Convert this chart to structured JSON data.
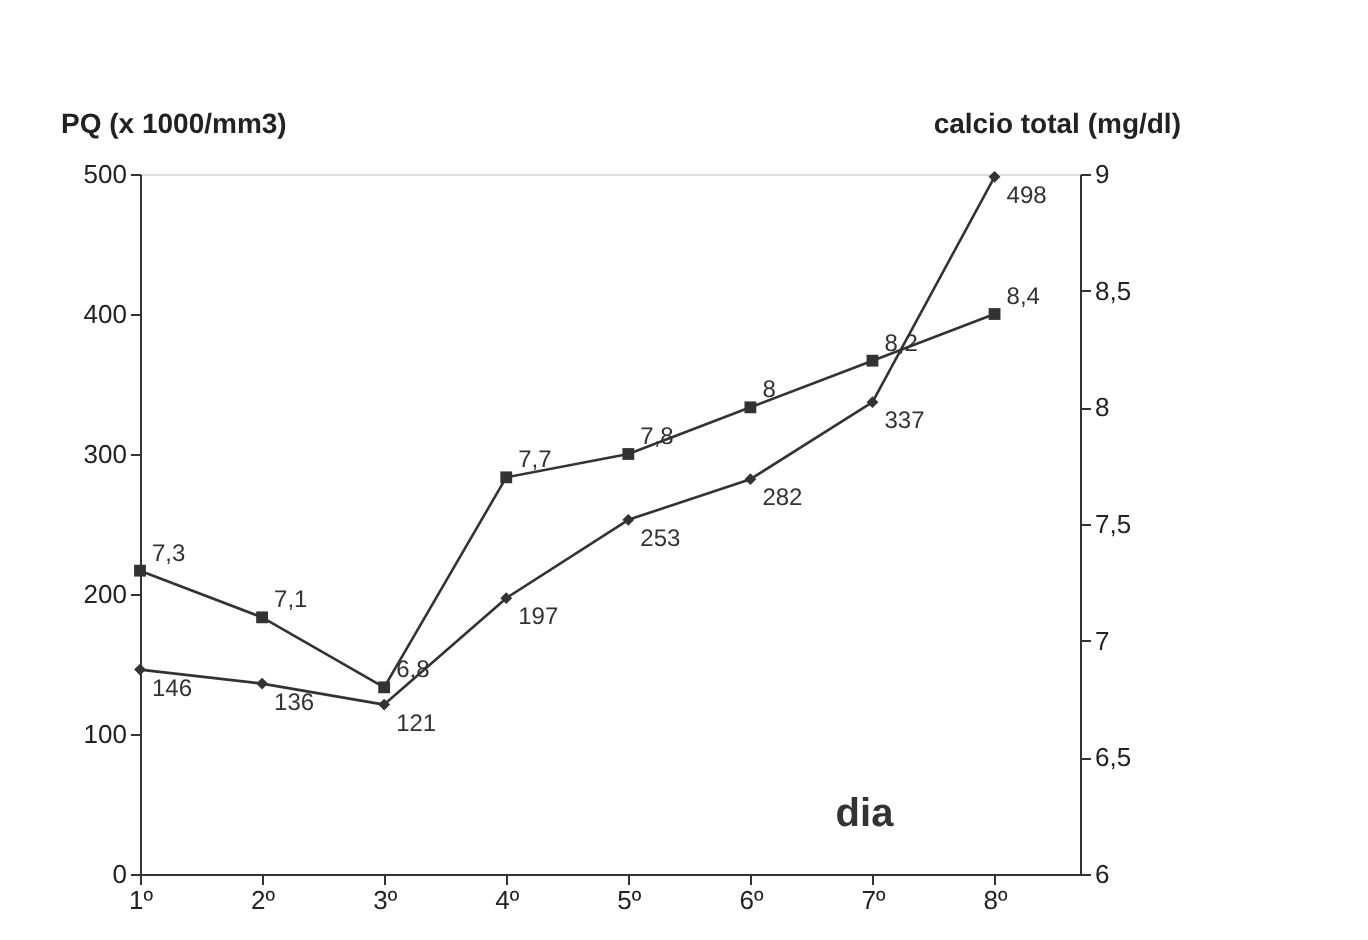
{
  "chart_data": {
    "type": "line",
    "categories": [
      "1º",
      "2º",
      "3º",
      "4º",
      "5º",
      "6º",
      "7º",
      "8º"
    ],
    "ylabel": "PQ (x 1000/mm3)",
    "y2label": "calcio total (mg/dl)",
    "annotations": [
      "dia"
    ],
    "series": [
      {
        "values": [
          146,
          136,
          121,
          197,
          253,
          282,
          337,
          498
        ],
        "color": "#333333",
        "marker": "diamond",
        "value_labels": [
          "146",
          "136",
          "121",
          "197",
          "253",
          "282",
          "337",
          "498"
        ]
      },
      {
        "values": [
          7.3,
          7.1,
          6.8,
          7.7,
          7.8,
          8,
          8.2,
          8.4
        ],
        "color": "#333333",
        "marker": "square",
        "axis": "y2",
        "value_labels": [
          "7,3",
          "7,1",
          "6,8",
          "7,7",
          "7,8",
          "8",
          "8,2",
          "8,4"
        ]
      }
    ],
    "ylim": [
      0,
      500
    ],
    "yticks": [
      0,
      100,
      200,
      300,
      400,
      500
    ],
    "y2lim": [
      6,
      9
    ],
    "y2ticks": [
      6,
      {
        "value": 6.5,
        "label": "6,5"
      },
      7,
      {
        "value": 7.5,
        "label": "7,5"
      },
      8,
      {
        "value": 8.5,
        "label": "8,5"
      },
      9
    ],
    "grid": false,
    "line_style": "solid"
  }
}
